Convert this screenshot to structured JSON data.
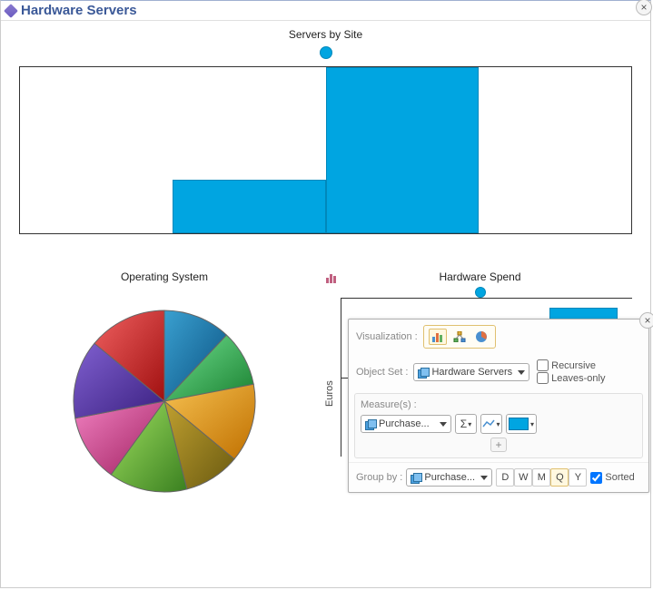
{
  "panel": {
    "title": "Hardware Servers"
  },
  "top_chart": {
    "type": "bar",
    "title": "Servers by Site",
    "legend_color": "#00a5e1",
    "border_color": "#0088bb",
    "background": "#ffffff",
    "frame_color": "#333333",
    "bars": [
      {
        "height_pct": 0
      },
      {
        "height_pct": 32
      },
      {
        "height_pct": 100
      },
      {
        "height_pct": 0
      }
    ]
  },
  "pie_chart": {
    "type": "pie",
    "title": "Operating System",
    "stroke": "#666666",
    "slices": [
      {
        "value": 12,
        "start_color": "#3aa0d0",
        "end_color": "#0a5080"
      },
      {
        "value": 10,
        "start_color": "#70e090",
        "end_color": "#1a8030"
      },
      {
        "value": 14,
        "start_color": "#f5c050",
        "end_color": "#c07000"
      },
      {
        "value": 10,
        "start_color": "#c0a030",
        "end_color": "#6a5a10"
      },
      {
        "value": 14,
        "start_color": "#a0e060",
        "end_color": "#3a8020"
      },
      {
        "value": 12,
        "start_color": "#f080c0",
        "end_color": "#a02060"
      },
      {
        "value": 14,
        "start_color": "#8060d0",
        "end_color": "#3a2080"
      },
      {
        "value": 14,
        "start_color": "#f06060",
        "end_color": "#a01010"
      }
    ]
  },
  "bottom_chart": {
    "type": "bar",
    "title": "Hardware Spend",
    "ylabel": "Euros",
    "legend_color": "#00a5e1",
    "border_color": "#0088bb",
    "row1": [
      {
        "height_pct": 0
      },
      {
        "height_pct": 0
      },
      {
        "height_pct": 88
      }
    ],
    "row2": [
      {
        "height_pct": 0
      },
      {
        "height_pct": 48
      },
      {
        "height_pct": 95
      }
    ]
  },
  "popup": {
    "viz_label": "Visualization :",
    "viz_selected": 0,
    "object_set_label": "Object Set :",
    "object_set_value": "Hardware Servers",
    "recursive_label": "Recursive",
    "recursive_checked": false,
    "leaves_label": "Leaves-only",
    "leaves_checked": false,
    "measures_label": "Measure(s) :",
    "measure_value": "Purchase...",
    "sigma_label": "Σ",
    "series_color": "#00a5e1",
    "groupby_label": "Group by :",
    "groupby_value": "Purchase...",
    "time_buttons": [
      "D",
      "W",
      "M",
      "Q",
      "Y"
    ],
    "time_selected": 3,
    "sorted_label": "Sorted",
    "sorted_checked": true
  }
}
